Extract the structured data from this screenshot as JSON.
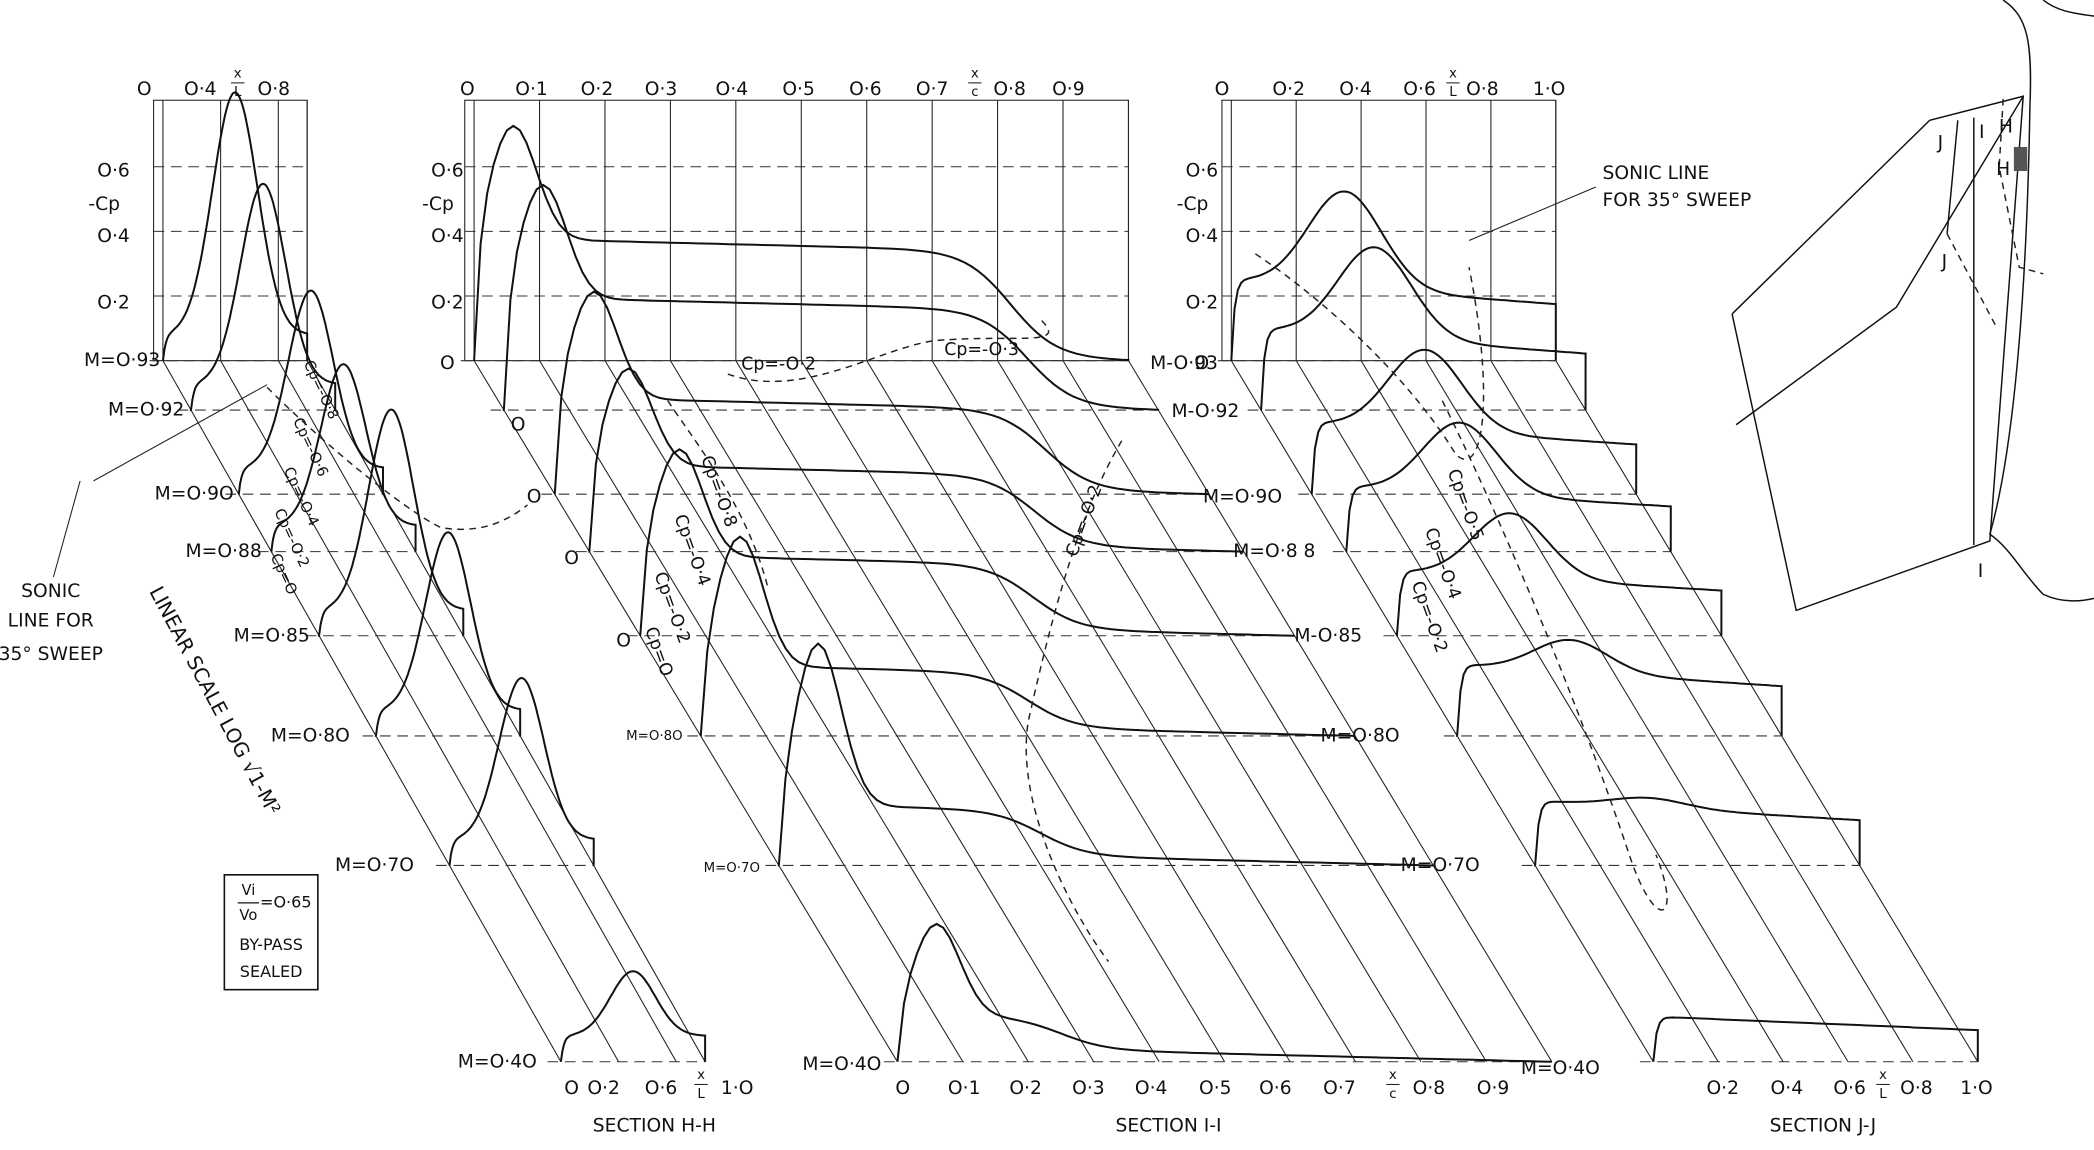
{
  "section_hh": {
    "title": "SECTION H-H",
    "top_ticks": [
      "O",
      "O·4",
      "O·8"
    ],
    "top_axis_label": [
      "x",
      "L"
    ],
    "cp_ticks": [
      "O·6",
      "O·4",
      "O·2"
    ],
    "cp_label": "-Cp",
    "mach_labels": [
      "M=O·93",
      "M=O·92",
      "M=O·9O",
      "M=O·88",
      "M=O·85",
      "M=O·8O",
      "M=O·7O",
      "M=O·4O"
    ],
    "bottom_ticks": [
      "O",
      "O·2",
      "O·6",
      "1·O"
    ],
    "bottom_axis_label": [
      "x",
      "L"
    ],
    "contours": [
      "Cp=-O·8",
      "Cp=-O·6",
      "Cp=-O·4",
      "Cp=-O·2",
      "Cp=O"
    ]
  },
  "section_ii": {
    "title": "SECTION I-I",
    "top_ticks": [
      "O",
      "O·1",
      "O·2",
      "O·3",
      "O·4",
      "O·5",
      "O·6",
      "O·7",
      "O·8",
      "O·9"
    ],
    "top_axis_label": [
      "x",
      "c"
    ],
    "cp_ticks": [
      "O·6",
      "O·4",
      "O·2",
      "O"
    ],
    "cp_label": "-Cp",
    "mach_labels": [
      "M-O·93",
      "M=O·8O",
      "M=O·7O",
      "M=O·4O"
    ],
    "bottom_ticks": [
      "O",
      "O·1",
      "O·2",
      "O·3",
      "O·4",
      "O·5",
      "O·6",
      "O·7",
      "O·8",
      "O·9"
    ],
    "bottom_axis_label": [
      "x",
      "c"
    ],
    "row_zeros": [
      "O",
      "O",
      "O",
      "O"
    ],
    "contours": [
      "Cp=-O·2",
      "Cp=-O·3",
      "Cp=-O·2",
      "Cp=-O·8",
      "Cp=-O·4",
      "Cp=-O·2",
      "Cp=O"
    ]
  },
  "section_jj": {
    "title": "SECTION J-J",
    "top_ticks": [
      "O",
      "O·2",
      "O·4",
      "O·6",
      "O·8",
      "1·O"
    ],
    "top_axis_label": [
      "x",
      "L"
    ],
    "cp_ticks": [
      "O·6",
      "O·4",
      "O·2",
      "O"
    ],
    "cp_label": "-Cp",
    "mach_labels": [
      "M-O·92",
      "M=O·9O",
      "M=O·8 8",
      "M-O·85",
      "M=O·8O",
      "M=O·7O",
      "M=O·4O"
    ],
    "bottom_ticks": [
      "O·2",
      "O·4",
      "O·6",
      "O·8",
      "1·O"
    ],
    "bottom_axis_label": [
      "x",
      "L"
    ],
    "contours": [
      "Cp=-O·5",
      "Cp=-O·4",
      "Cp=-O·2"
    ]
  },
  "notes": {
    "sonic_left": [
      "SONIC",
      "LINE FOR",
      "35° SWEEP"
    ],
    "sonic_right": [
      "SONIC LINE",
      "FOR 35° SWEEP"
    ],
    "scale_axis": "LINEAR SCALE LOG √1-M²",
    "flow_ratio": [
      "Vi",
      "Vo",
      "=O·65"
    ],
    "bypass": [
      "BY-PASS",
      "SEALED"
    ]
  },
  "planform": {
    "labels": [
      "J",
      "I",
      "H",
      "H",
      "J",
      "I"
    ]
  }
}
